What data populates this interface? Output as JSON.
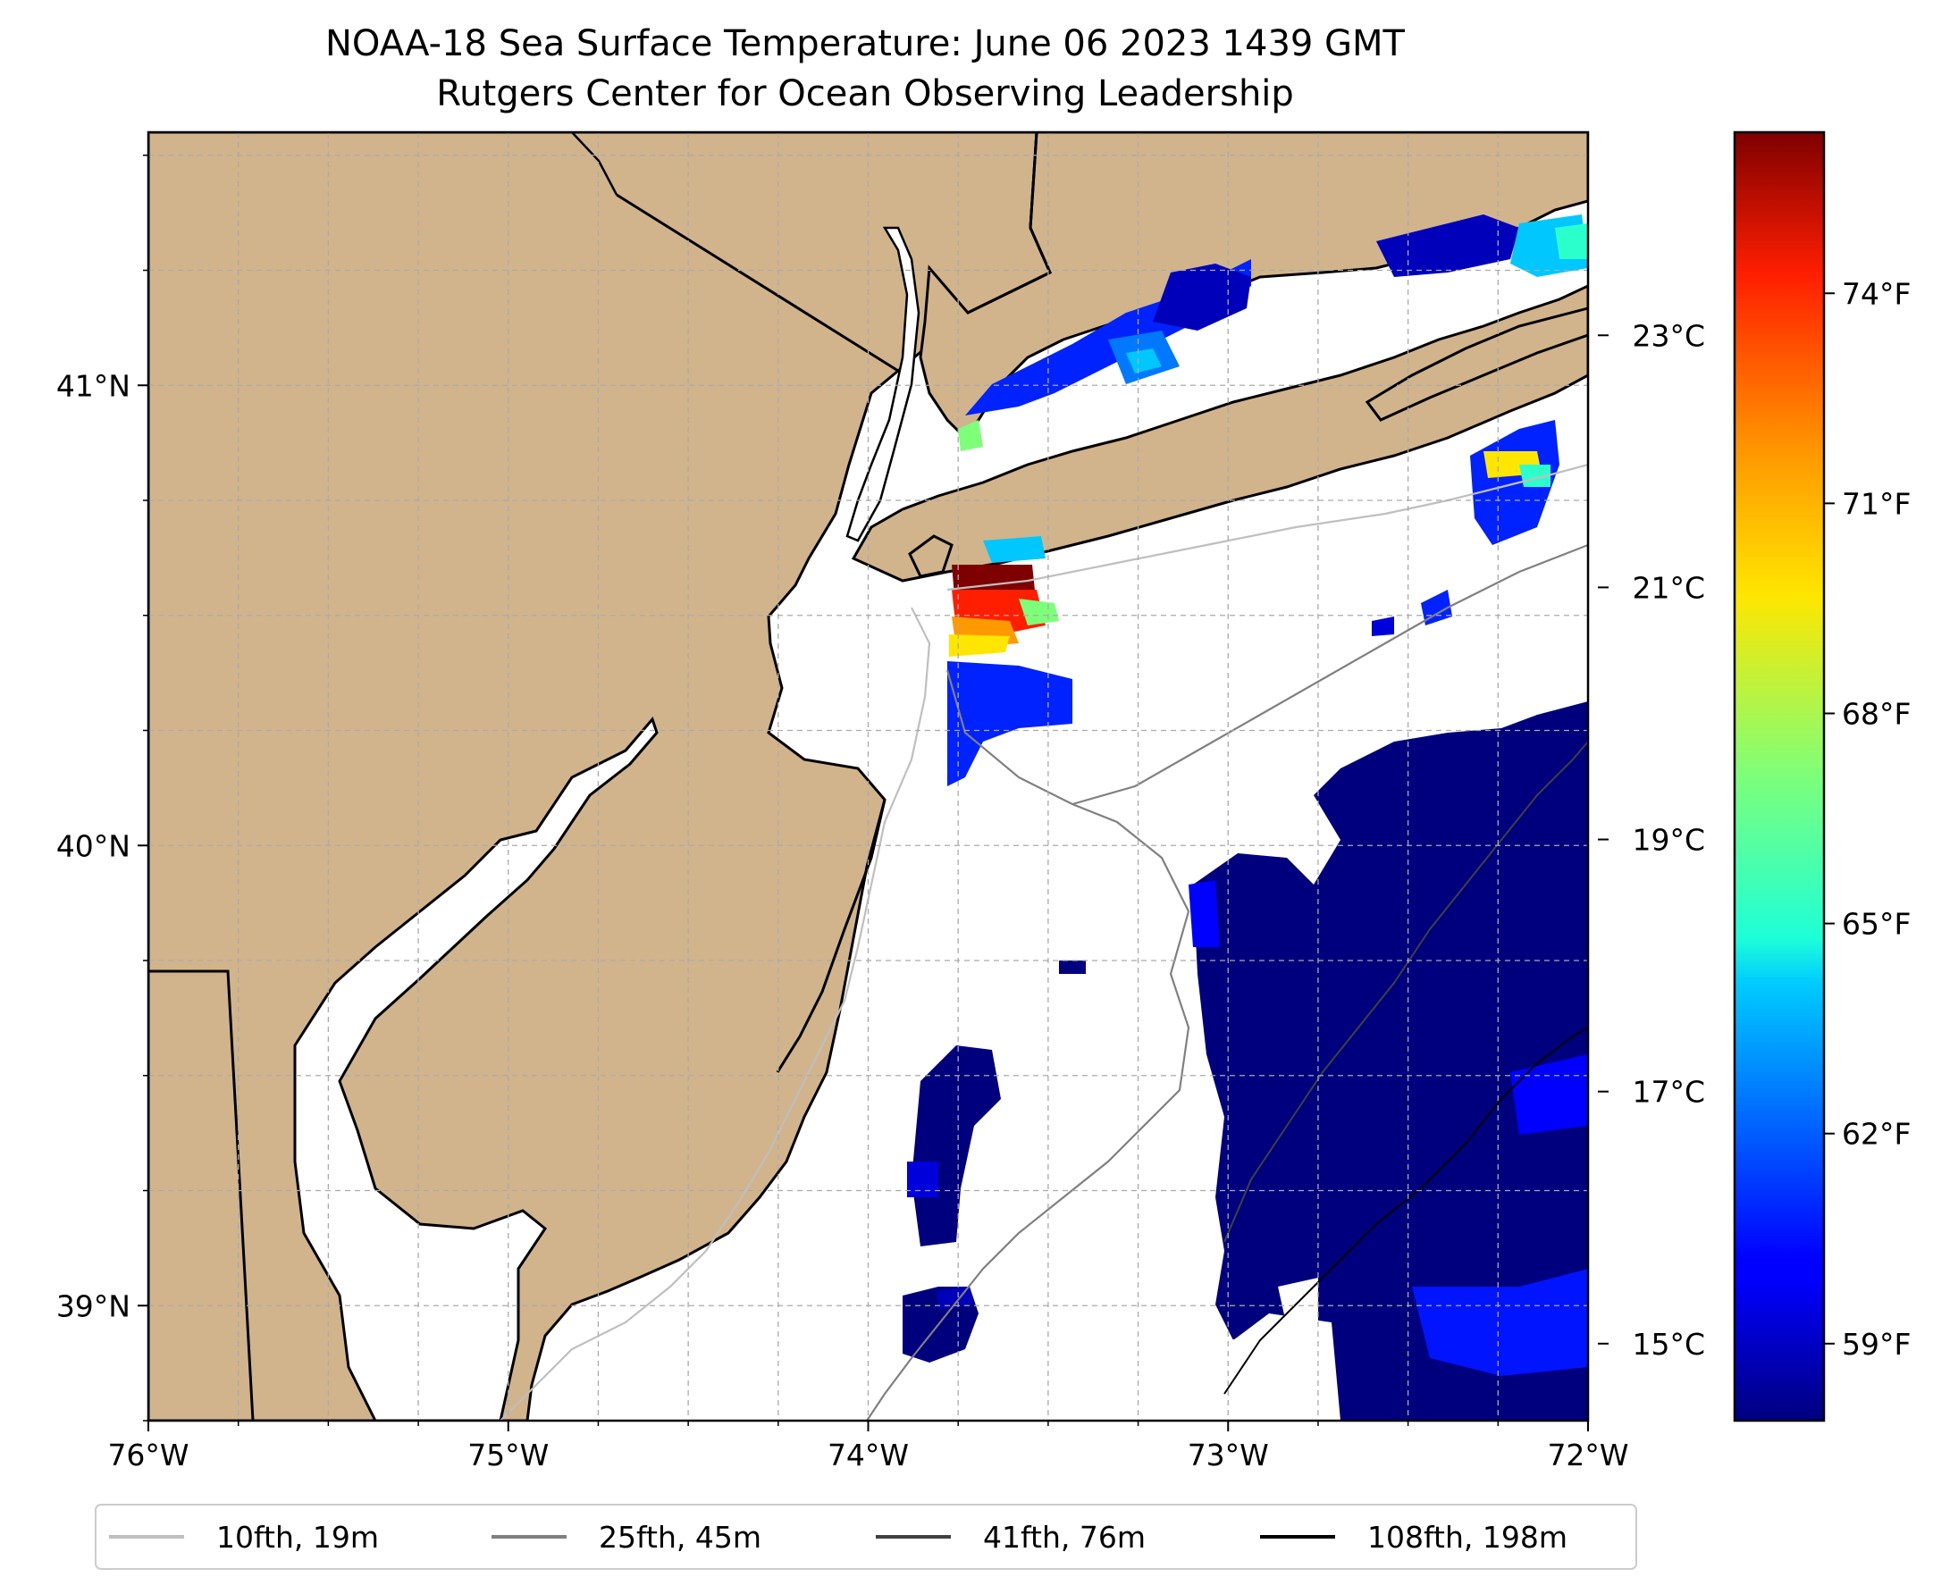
{
  "title": {
    "line1": "NOAA-18 Sea Surface Temperature: June 06 2023 1439 GMT",
    "line2": "Rutgers Center for Ocean Observing Leadership"
  },
  "map": {
    "lon_range": [
      -76.0,
      -72.0
    ],
    "lat_range": [
      38.75,
      41.55
    ],
    "x_ticks": [
      {
        "value": -76,
        "label": "76°W"
      },
      {
        "value": -75,
        "label": "75°W"
      },
      {
        "value": -74,
        "label": "74°W"
      },
      {
        "value": -73,
        "label": "73°W"
      },
      {
        "value": -72,
        "label": "72°W"
      }
    ],
    "y_ticks": [
      {
        "value": 39,
        "label": "39°N"
      },
      {
        "value": 40,
        "label": "40°N"
      },
      {
        "value": 41,
        "label": "41°N"
      }
    ],
    "grid": true,
    "land_color": "#d2b48c",
    "water_color": "#ffffff"
  },
  "colorbar": {
    "colormap": "jet",
    "range_f": [
      57.9,
      76.3
    ],
    "celsius_ticks": [
      {
        "value": 15,
        "label": "15°C"
      },
      {
        "value": 17,
        "label": "17°C"
      },
      {
        "value": 19,
        "label": "19°C"
      },
      {
        "value": 21,
        "label": "21°C"
      },
      {
        "value": 23,
        "label": "23°C"
      }
    ],
    "fahrenheit_ticks": [
      {
        "value": 59,
        "label": "59°F"
      },
      {
        "value": 62,
        "label": "62°F"
      },
      {
        "value": 65,
        "label": "65°F"
      },
      {
        "value": 68,
        "label": "68°F"
      },
      {
        "value": 71,
        "label": "71°F"
      },
      {
        "value": 74,
        "label": "74°F"
      }
    ]
  },
  "legend": {
    "placement": "bottom",
    "items": [
      {
        "label": "10fth, 19m",
        "color": "#bfbfbf"
      },
      {
        "label": "25fth, 45m",
        "color": "#808080"
      },
      {
        "label": "41fth, 76m",
        "color": "#404040"
      },
      {
        "label": "108fth, 198m",
        "color": "#000000"
      }
    ]
  }
}
